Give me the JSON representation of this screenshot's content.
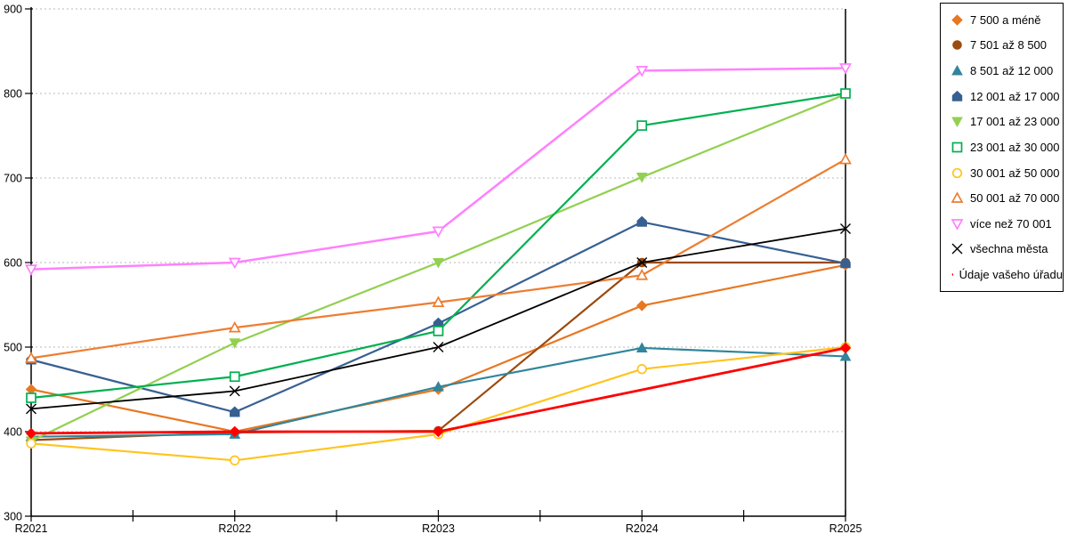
{
  "chart_data": {
    "type": "line",
    "categories": [
      "R2021",
      "R2022",
      "R2023",
      "R2024",
      "R2025"
    ],
    "series": [
      {
        "name": "7 500 a méně",
        "color": "#E87722",
        "marker": "diamond",
        "fill": "filled",
        "values": [
          450,
          400,
          450,
          549,
          597
        ]
      },
      {
        "name": "7 501 až 8 500",
        "color": "#9C4A0E",
        "marker": "circle",
        "fill": "filled",
        "values": [
          390,
          399,
          401,
          600,
          600
        ]
      },
      {
        "name": "8 501 až 12 000",
        "color": "#31859C",
        "marker": "triangle-up",
        "fill": "filled",
        "values": [
          394,
          397,
          453,
          499,
          489
        ]
      },
      {
        "name": "12 001 až 17 000",
        "color": "#376092",
        "marker": "pentagon",
        "fill": "filled",
        "values": [
          485,
          423,
          528,
          648,
          599
        ]
      },
      {
        "name": "17 001 až 23 000",
        "color": "#92D050",
        "marker": "triangle-down",
        "fill": "filled",
        "values": [
          389,
          505,
          600,
          701,
          799
        ]
      },
      {
        "name": "23 001 až 30 000",
        "color": "#00B050",
        "marker": "square",
        "fill": "open",
        "values": [
          440,
          465,
          519,
          762,
          800
        ]
      },
      {
        "name": "30 001 až 50 000",
        "color": "#FFC41E",
        "marker": "circle",
        "fill": "open",
        "values": [
          386,
          366,
          397,
          474,
          500
        ]
      },
      {
        "name": "50 001 až 70 000",
        "color": "#ED7D31",
        "marker": "triangle-up",
        "fill": "open",
        "values": [
          487,
          523,
          553,
          585,
          722
        ]
      },
      {
        "name": "více než 70 001",
        "color": "#FF80FF",
        "marker": "triangle-down",
        "fill": "open",
        "values": [
          592,
          600,
          637,
          827,
          830
        ]
      },
      {
        "name": "všechna města",
        "color": "#000000",
        "marker": "x",
        "fill": "line",
        "values": [
          427,
          448,
          500,
          600,
          640
        ]
      },
      {
        "name": "Údaje vašeho úřadu",
        "color": "#FF0000",
        "marker": "diamond",
        "fill": "filled",
        "values": [
          398,
          400,
          400,
          null,
          499
        ]
      }
    ],
    "ylim": [
      300,
      900
    ],
    "yticks": [
      300,
      400,
      500,
      600,
      700,
      800,
      900
    ],
    "grid": "horizontal-dashed",
    "gridline_color": "#b8b8b8",
    "axis_color": "#000000",
    "legend_position": "right"
  }
}
